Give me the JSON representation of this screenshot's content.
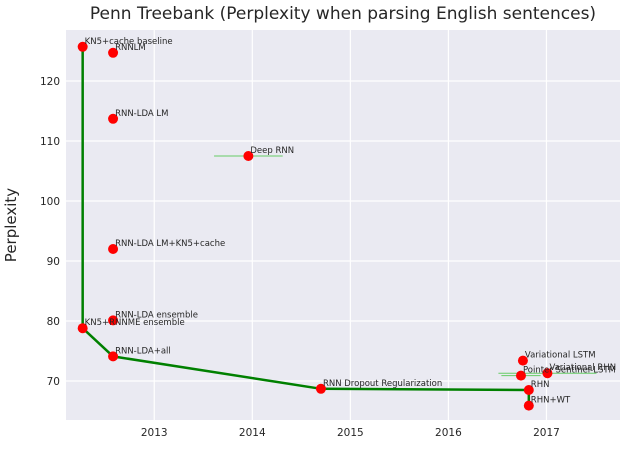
{
  "chart_data": {
    "type": "scatter",
    "title": "Penn Treebank (Perplexity when parsing English sentences)",
    "xlabel": "",
    "ylabel": "Perplexity",
    "xlim": [
      2012.1,
      2017.75
    ],
    "ylim": [
      63.5,
      128.5
    ],
    "xticks": [
      2013,
      2014,
      2015,
      2016,
      2017
    ],
    "yticks": [
      70,
      80,
      90,
      100,
      110,
      120
    ],
    "grid": true,
    "colors": {
      "background": "#eaeaf2",
      "grid": "#ffffff",
      "points": "#ff0000",
      "frontier": "#008000",
      "error_bars": "#66cc66"
    },
    "points": [
      {
        "label": "KN5+cache baseline",
        "x": 2012.27,
        "y": 125.7
      },
      {
        "label": "RNNLM",
        "x": 2012.58,
        "y": 124.7
      },
      {
        "label": "RNN-LDA LM",
        "x": 2012.58,
        "y": 113.7
      },
      {
        "label": "Deep RNN",
        "x": 2013.96,
        "y": 107.5,
        "xerr": 0.35
      },
      {
        "label": "RNN-LDA LM+KN5+cache",
        "x": 2012.58,
        "y": 92.0
      },
      {
        "label": "RNN-LDA ensemble",
        "x": 2012.58,
        "y": 80.1
      },
      {
        "label": "KN5+RNNME ensemble",
        "x": 2012.27,
        "y": 78.8
      },
      {
        "label": "RNN-LDA+all",
        "x": 2012.58,
        "y": 74.1
      },
      {
        "label": "RNN Dropout Regularization",
        "x": 2014.7,
        "y": 68.7
      },
      {
        "label": "Variational LSTM",
        "x": 2016.76,
        "y": 73.4
      },
      {
        "label": "Pointer Sentinel-LSTM",
        "x": 2016.74,
        "y": 70.9,
        "xerr": 0.2
      },
      {
        "label": "Variational RHN",
        "x": 2017.01,
        "y": 71.3,
        "xerr": 0.5
      },
      {
        "label": "RHN",
        "x": 2016.82,
        "y": 68.5
      },
      {
        "label": "RHN+WT",
        "x": 2016.82,
        "y": 65.9
      }
    ],
    "frontier": [
      {
        "x": 2012.27,
        "y": 125.7
      },
      {
        "x": 2012.27,
        "y": 78.8
      },
      {
        "x": 2012.58,
        "y": 74.1
      },
      {
        "x": 2014.7,
        "y": 68.7
      },
      {
        "x": 2016.82,
        "y": 68.5
      },
      {
        "x": 2016.82,
        "y": 65.9
      }
    ]
  }
}
